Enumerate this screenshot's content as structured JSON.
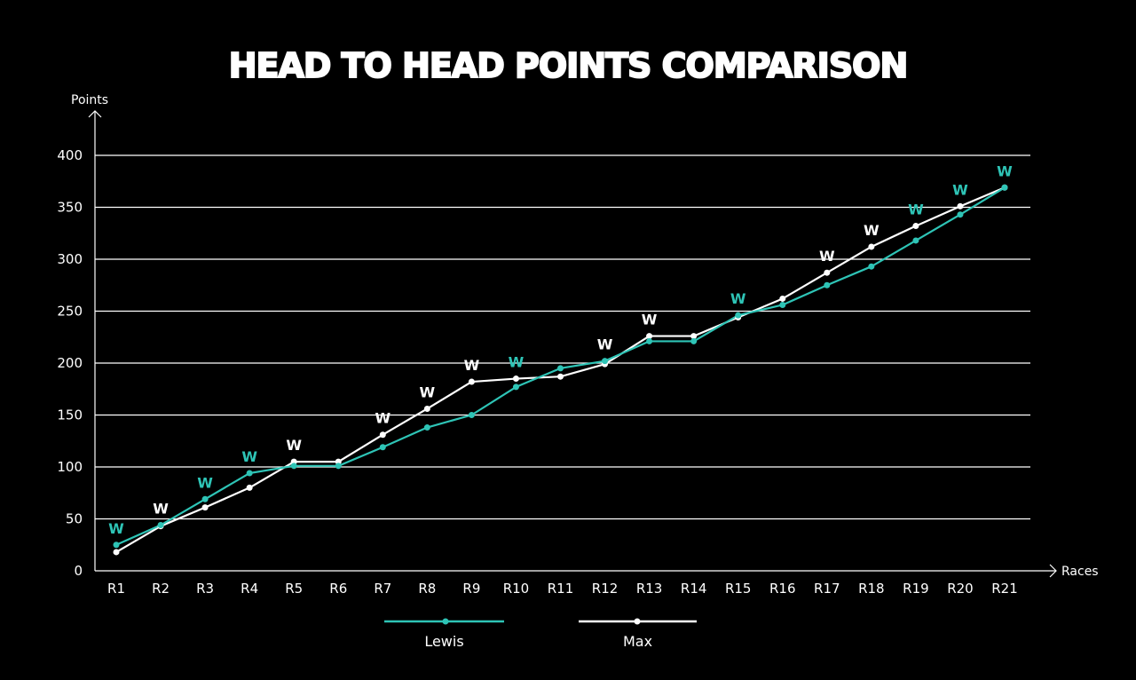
{
  "chart_data": {
    "type": "line",
    "title": "HEAD TO HEAD POINTS COMPARISON",
    "ylabel": "Points",
    "xlabel": "Races",
    "ylim": [
      0,
      400
    ],
    "yticks": [
      0,
      50,
      100,
      150,
      200,
      250,
      300,
      350,
      400
    ],
    "categories": [
      "R1",
      "R2",
      "R3",
      "R4",
      "R5",
      "R6",
      "R7",
      "R8",
      "R9",
      "R10",
      "R11",
      "R12",
      "R13",
      "R14",
      "R15",
      "R16",
      "R17",
      "R18",
      "R19",
      "R20",
      "R21"
    ],
    "win_marker": "W",
    "series": [
      {
        "name": "Lewis",
        "color": "#2ec4b6",
        "values": [
          25,
          44,
          69,
          94,
          101,
          101,
          119,
          138,
          150,
          177,
          195,
          202,
          221,
          221,
          246,
          256,
          275,
          293,
          318,
          343,
          369
        ],
        "wins": [
          "R1",
          "R3",
          "R4",
          "R10",
          "R15",
          "R19",
          "R20",
          "R21"
        ]
      },
      {
        "name": "Max",
        "color": "#ffffff",
        "values": [
          18,
          43,
          61,
          80,
          105,
          105,
          131,
          156,
          182,
          185,
          187,
          199,
          226,
          226,
          244,
          262,
          287,
          312,
          332,
          351,
          369
        ],
        "wins": [
          "R2",
          "R5",
          "R7",
          "R8",
          "R9",
          "R12",
          "R13",
          "R17",
          "R18"
        ]
      }
    ],
    "grid": true,
    "legend": "bottom-center"
  }
}
